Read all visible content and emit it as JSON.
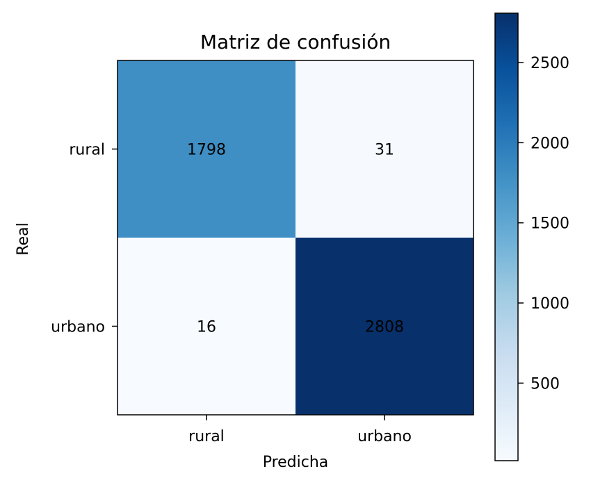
{
  "chart_data": {
    "type": "heatmap",
    "title": "Matriz de confusión",
    "xlabel": "Predicha",
    "ylabel": "Real",
    "x_categories": [
      "rural",
      "urbano"
    ],
    "y_categories": [
      "rural",
      "urbano"
    ],
    "values": [
      [
        1798,
        31
      ],
      [
        16,
        2808
      ]
    ],
    "colormap": "Blues",
    "color_range": [
      16,
      2808
    ],
    "colorbar_ticks": [
      500,
      1000,
      1500,
      2000,
      2500
    ],
    "grid": false,
    "legend": "colorbar-right"
  }
}
